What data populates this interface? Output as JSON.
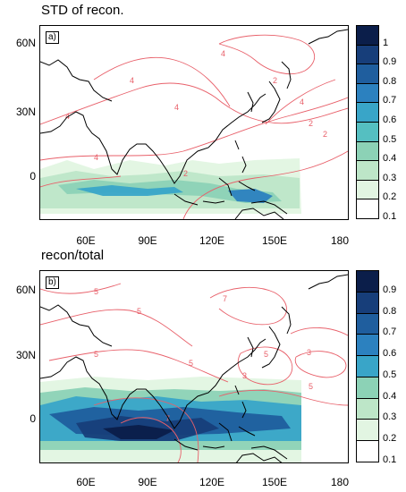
{
  "panels": [
    {
      "title": "STD of recon.",
      "tag": "a)",
      "contour_labels": [
        "4",
        "4",
        "4",
        "4",
        "4",
        "4",
        "2",
        "2",
        "2",
        "2"
      ],
      "colorbar": [
        "1",
        "0.9",
        "0.8",
        "0.7",
        "0.6",
        "0.5",
        "0.4",
        "0.3",
        "0.2",
        "0.1"
      ],
      "colors": [
        "#0b1e4a",
        "#173e7a",
        "#1f5e9e",
        "#2c81bf",
        "#39a5c8",
        "#55bfc1",
        "#8cd2b6",
        "#bde6c8",
        "#e2f5e2",
        "#ffffff"
      ]
    },
    {
      "title": "recon/total",
      "tag": "b)",
      "contour_labels": [
        "5",
        "5",
        "5",
        "7",
        "7",
        "5",
        "3",
        "3",
        "5",
        "5"
      ],
      "colorbar": [
        "0.9",
        "0.8",
        "0.7",
        "0.6",
        "0.5",
        "0.4",
        "0.3",
        "0.2",
        "0.1"
      ],
      "colors": [
        "#0b1e4a",
        "#173e7a",
        "#1f5e9e",
        "#2c81bf",
        "#39a5c8",
        "#8cd2b6",
        "#bde6c8",
        "#e2f5e2",
        "#ffffff"
      ]
    }
  ],
  "y_ticks": [
    "60N",
    "30N",
    "0"
  ],
  "x_ticks": [
    "60E",
    "90E",
    "120E",
    "150E",
    "180"
  ]
}
